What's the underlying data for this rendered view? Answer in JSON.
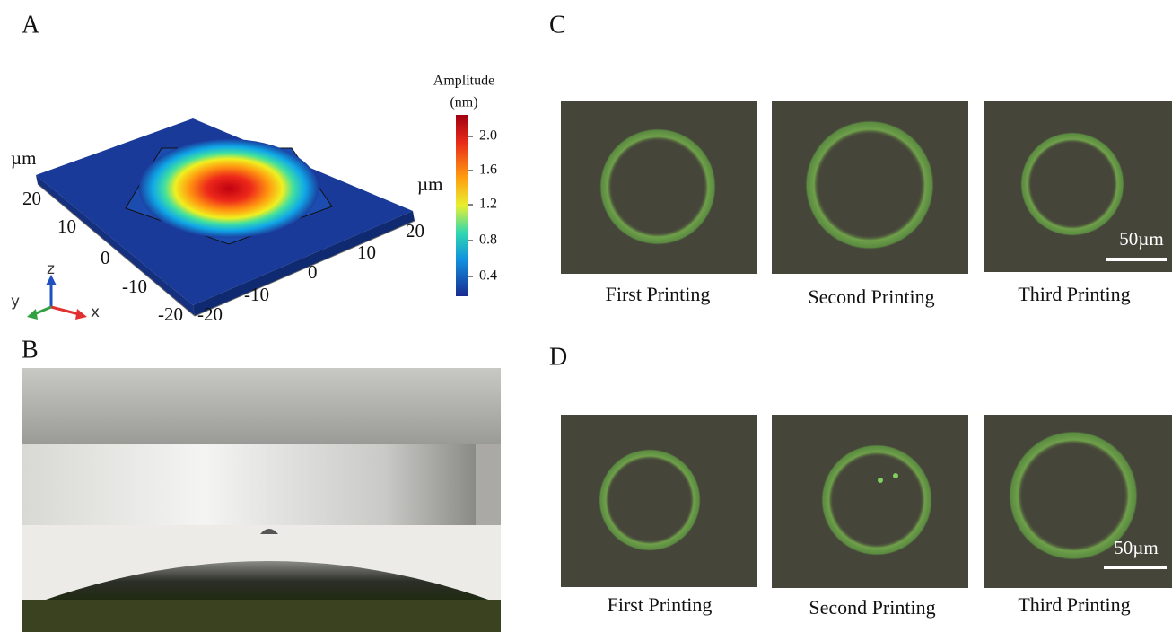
{
  "panels": {
    "a": {
      "label": "A",
      "colorbar_title": [
        "Amplitude",
        "(nm)"
      ],
      "colorbar_ticks": [
        "2.0",
        "1.6",
        "1.2",
        "0.8",
        "0.4"
      ],
      "left_axis_unit": "µm",
      "left_axis_ticks": [
        "20",
        "10",
        "0",
        "-10",
        "-20"
      ],
      "right_axis_unit": "µm",
      "right_axis_ticks": [
        "-20",
        "-10",
        "0",
        "10",
        "20"
      ],
      "triad": [
        "z",
        "x",
        "y"
      ]
    },
    "b": {
      "label": "B"
    },
    "c": {
      "label": "C",
      "captions": [
        "First Printing",
        "Second Printing",
        "Third Printing"
      ],
      "scale_bar": "50µm"
    },
    "d": {
      "label": "D",
      "captions": [
        "First Printing",
        "Second Printing",
        "Third Printing"
      ],
      "scale_bar": "50µm"
    }
  }
}
